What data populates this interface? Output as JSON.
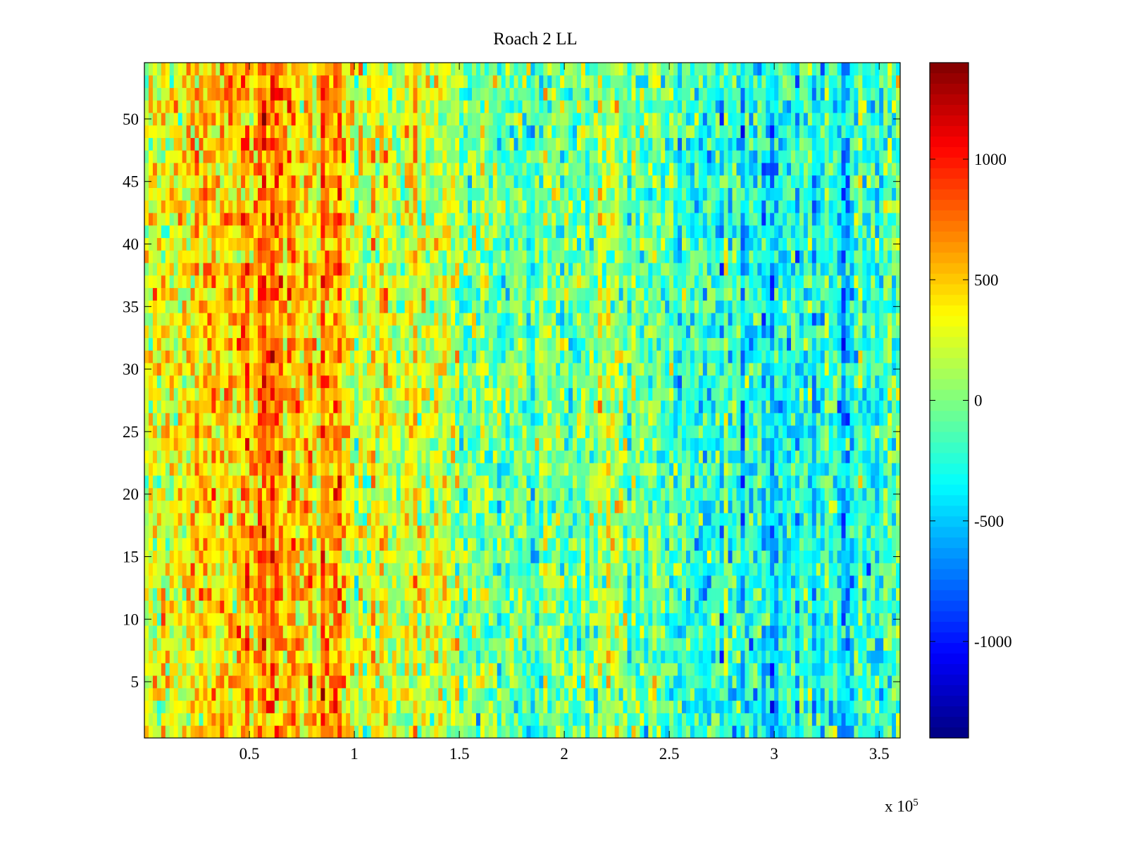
{
  "chart_data": {
    "type": "heatmap",
    "title": "Roach 2 LL",
    "xlabel": "",
    "ylabel": "",
    "x_multiplier_label": "x 10",
    "x_multiplier_exponent": "5",
    "xlim": [
      0,
      360000
    ],
    "ylim": [
      0.5,
      54.5
    ],
    "x_ticks": [
      50000,
      100000,
      150000,
      200000,
      250000,
      300000,
      350000
    ],
    "x_tick_labels": [
      "0.5",
      "1",
      "1.5",
      "2",
      "2.5",
      "3",
      "3.5"
    ],
    "y_ticks": [
      5,
      10,
      15,
      20,
      25,
      30,
      35,
      40,
      45,
      50
    ],
    "y_tick_labels": [
      "5",
      "10",
      "15",
      "20",
      "25",
      "30",
      "35",
      "40",
      "45",
      "50"
    ],
    "rows": 54,
    "colormap": "jet",
    "clim": [
      -1400,
      1400
    ],
    "colorbar_ticks": [
      1000,
      500,
      0,
      -500,
      -1000
    ],
    "colorbar_tick_labels": [
      "1000",
      "500",
      "0",
      "-500",
      "-1000"
    ],
    "column_profile": [
      {
        "x": 0,
        "mean": 150
      },
      {
        "x": 15000,
        "mean": 300
      },
      {
        "x": 30000,
        "mean": 450
      },
      {
        "x": 50000,
        "mean": 580
      },
      {
        "x": 62000,
        "mean": 680
      },
      {
        "x": 72000,
        "mean": 480
      },
      {
        "x": 78000,
        "mean": 350
      },
      {
        "x": 85000,
        "mean": 620
      },
      {
        "x": 92000,
        "mean": 680
      },
      {
        "x": 100000,
        "mean": 180
      },
      {
        "x": 112000,
        "mean": 240
      },
      {
        "x": 125000,
        "mean": 300
      },
      {
        "x": 140000,
        "mean": 320
      },
      {
        "x": 150000,
        "mean": 40
      },
      {
        "x": 175000,
        "mean": -100
      },
      {
        "x": 200000,
        "mean": -50
      },
      {
        "x": 220000,
        "mean": 60
      },
      {
        "x": 245000,
        "mean": -120
      },
      {
        "x": 275000,
        "mean": -220
      },
      {
        "x": 300000,
        "mean": -320
      },
      {
        "x": 330000,
        "mean": -260
      },
      {
        "x": 360000,
        "mean": -200
      }
    ]
  },
  "colors": {
    "background": "#ffffff",
    "axes": "#000000",
    "jet_low": "#00008f",
    "jet_high": "#7f0000"
  }
}
